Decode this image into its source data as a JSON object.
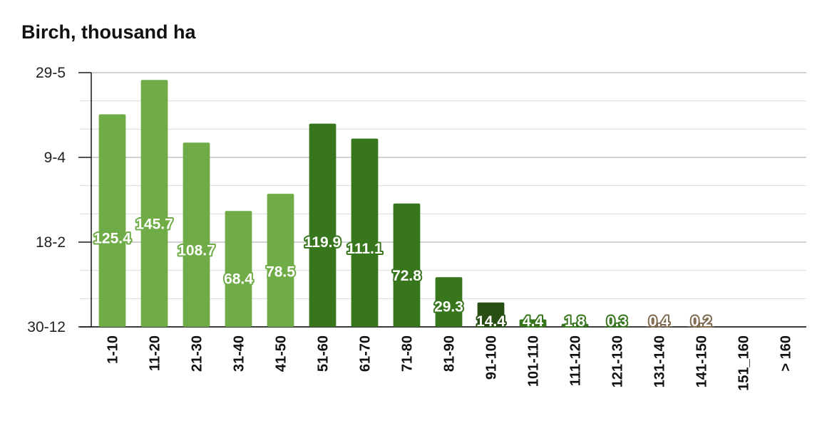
{
  "chart_data": {
    "type": "bar",
    "title": "Birch, thousand ha",
    "xlabel": "",
    "ylabel": "",
    "ytick_labels": [
      "29-5",
      "9-4",
      "18-2",
      "30-12"
    ],
    "ylim": [
      0,
      150
    ],
    "grid": true,
    "legend": "none",
    "categories": [
      "1-10",
      "11-20",
      "21-30",
      "31-40",
      "41-50",
      "51-60",
      "61-70",
      "71-80",
      "81-90",
      "91-100",
      "101-110",
      "111-120",
      "121-130",
      "131-140",
      "141-150",
      "151_160",
      "> 160"
    ],
    "values": [
      125.4,
      145.7,
      108.7,
      68.4,
      78.5,
      119.9,
      111.1,
      72.8,
      29.3,
      14.4,
      4.4,
      1.8,
      0.3,
      0.4,
      0.2,
      null,
      null
    ],
    "data_labels": [
      "125.4",
      "145.7",
      "108.7",
      "68.4",
      "78.5",
      "119.9",
      "111.1",
      "72.8",
      "29.3",
      "14.4",
      "4.4",
      "1.8",
      "0.3",
      "0.4",
      "0.2",
      "",
      ""
    ],
    "bar_colors": [
      "#6fac47",
      "#6fac47",
      "#6fac47",
      "#6fac47",
      "#6fac47",
      "#38761d",
      "#38761d",
      "#38761d",
      "#38761d",
      "#274e13",
      "#38761d",
      "#38761d",
      "#38761d",
      "#7f6a4f",
      "#7f6a4f",
      "#7f6a4f",
      "#7f6a4f"
    ],
    "label_stroke_colors": [
      "#6fac47",
      "#6fac47",
      "#6fac47",
      "#6fac47",
      "#6fac47",
      "#38761d",
      "#38761d",
      "#38761d",
      "#38761d",
      "#274e13",
      "#38761d",
      "#38761d",
      "#38761d",
      "#7f6a4f",
      "#7f6a4f",
      "#7f6a4f",
      "#7f6a4f"
    ]
  }
}
